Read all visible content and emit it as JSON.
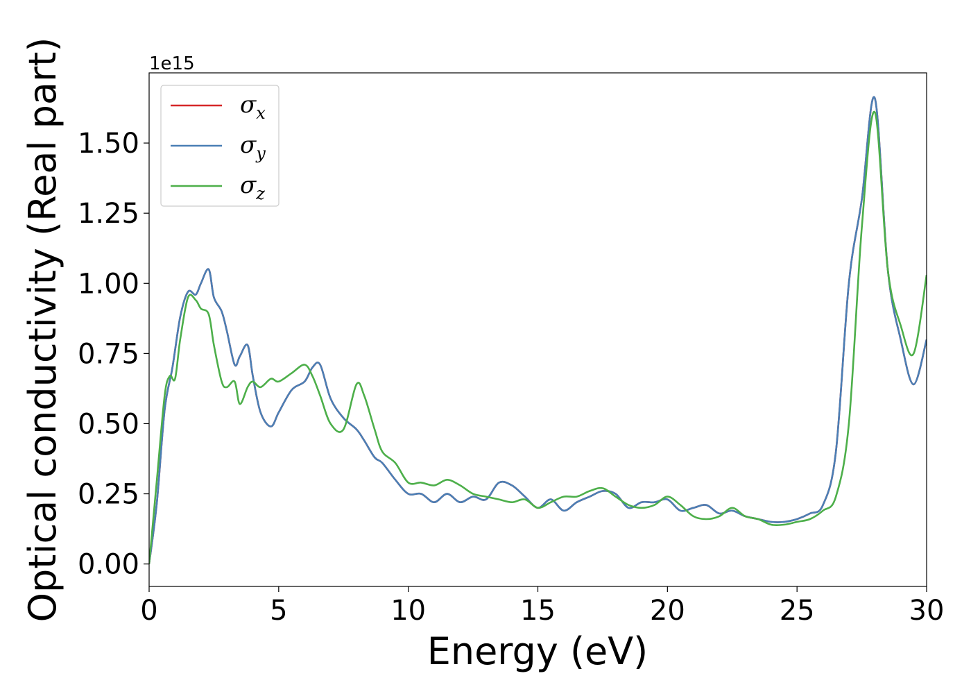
{
  "chart_data": {
    "type": "line",
    "title": "",
    "xlabel": "Energy (eV)",
    "ylabel": "Optical conductivity (Real part)",
    "y_offset_label": "1e15",
    "xlim": [
      0,
      30
    ],
    "ylim": [
      -0.08,
      1.75
    ],
    "x_ticks": [
      0,
      5,
      10,
      15,
      20,
      25,
      30
    ],
    "x_tick_labels": [
      "0",
      "5",
      "10",
      "15",
      "20",
      "25",
      "30"
    ],
    "y_ticks": [
      0,
      0.25,
      0.5,
      0.75,
      1.0,
      1.25,
      1.5
    ],
    "y_tick_labels": [
      "0.00",
      "0.25",
      "0.50",
      "0.75",
      "1.00",
      "1.25",
      "1.50"
    ],
    "grid": false,
    "legend_position": "top-left",
    "series": [
      {
        "name": "x",
        "color": "#d62728",
        "x": [
          0,
          0.3,
          0.6,
          0.9,
          1.2,
          1.5,
          1.8,
          2.0,
          2.3,
          2.5,
          2.8,
          3.0,
          3.3,
          3.5,
          3.8,
          4.0,
          4.3,
          4.7,
          5.0,
          5.5,
          6.0,
          6.3,
          6.6,
          7.0,
          7.5,
          8.0,
          8.3,
          8.7,
          9.0,
          9.5,
          10.0,
          10.5,
          11.0,
          11.5,
          12.0,
          12.5,
          13.0,
          13.5,
          14.0,
          14.5,
          15.0,
          15.5,
          16.0,
          16.5,
          17.0,
          17.5,
          18.0,
          18.5,
          19.0,
          19.5,
          20.0,
          20.5,
          21.0,
          21.5,
          22.0,
          22.5,
          23.0,
          23.5,
          24.0,
          24.5,
          25.0,
          25.5,
          26.0,
          26.5,
          27.0,
          27.5,
          28.0,
          28.5,
          29.0,
          29.5,
          30.0
        ],
        "y": [
          0,
          0.22,
          0.55,
          0.7,
          0.88,
          0.97,
          0.96,
          1.0,
          1.05,
          0.95,
          0.9,
          0.83,
          0.71,
          0.74,
          0.78,
          0.67,
          0.54,
          0.49,
          0.54,
          0.62,
          0.65,
          0.7,
          0.71,
          0.59,
          0.52,
          0.48,
          0.44,
          0.38,
          0.36,
          0.3,
          0.25,
          0.25,
          0.22,
          0.25,
          0.22,
          0.24,
          0.23,
          0.29,
          0.28,
          0.24,
          0.2,
          0.23,
          0.19,
          0.22,
          0.24,
          0.26,
          0.25,
          0.2,
          0.22,
          0.22,
          0.23,
          0.19,
          0.2,
          0.21,
          0.18,
          0.19,
          0.17,
          0.16,
          0.15,
          0.15,
          0.16,
          0.18,
          0.21,
          0.4,
          1.0,
          1.3,
          1.66,
          1.05,
          0.8,
          0.64,
          0.8
        ]
      },
      {
        "name": "y",
        "color": "#4a7fb5",
        "x": [
          0,
          0.3,
          0.6,
          0.9,
          1.2,
          1.5,
          1.8,
          2.0,
          2.3,
          2.5,
          2.8,
          3.0,
          3.3,
          3.5,
          3.8,
          4.0,
          4.3,
          4.7,
          5.0,
          5.5,
          6.0,
          6.3,
          6.6,
          7.0,
          7.5,
          8.0,
          8.3,
          8.7,
          9.0,
          9.5,
          10.0,
          10.5,
          11.0,
          11.5,
          12.0,
          12.5,
          13.0,
          13.5,
          14.0,
          14.5,
          15.0,
          15.5,
          16.0,
          16.5,
          17.0,
          17.5,
          18.0,
          18.5,
          19.0,
          19.5,
          20.0,
          20.5,
          21.0,
          21.5,
          22.0,
          22.5,
          23.0,
          23.5,
          24.0,
          24.5,
          25.0,
          25.5,
          26.0,
          26.5,
          27.0,
          27.5,
          28.0,
          28.5,
          29.0,
          29.5,
          30.0
        ],
        "y": [
          0,
          0.22,
          0.55,
          0.7,
          0.88,
          0.97,
          0.96,
          1.0,
          1.05,
          0.95,
          0.9,
          0.83,
          0.71,
          0.74,
          0.78,
          0.67,
          0.54,
          0.49,
          0.54,
          0.62,
          0.65,
          0.7,
          0.71,
          0.59,
          0.52,
          0.48,
          0.44,
          0.38,
          0.36,
          0.3,
          0.25,
          0.25,
          0.22,
          0.25,
          0.22,
          0.24,
          0.23,
          0.29,
          0.28,
          0.24,
          0.2,
          0.23,
          0.19,
          0.22,
          0.24,
          0.26,
          0.25,
          0.2,
          0.22,
          0.22,
          0.23,
          0.19,
          0.2,
          0.21,
          0.18,
          0.19,
          0.17,
          0.16,
          0.15,
          0.15,
          0.16,
          0.18,
          0.21,
          0.4,
          1.0,
          1.3,
          1.66,
          1.05,
          0.8,
          0.64,
          0.8
        ]
      },
      {
        "name": "z",
        "color": "#4daf4a",
        "x": [
          0,
          0.3,
          0.6,
          0.8,
          1.0,
          1.2,
          1.5,
          1.8,
          2.0,
          2.3,
          2.5,
          2.8,
          3.0,
          3.3,
          3.5,
          3.8,
          4.0,
          4.3,
          4.7,
          5.0,
          5.5,
          6.0,
          6.3,
          6.6,
          7.0,
          7.5,
          8.0,
          8.3,
          8.7,
          9.0,
          9.5,
          10.0,
          10.5,
          11.0,
          11.5,
          12.0,
          12.5,
          13.0,
          13.5,
          14.0,
          14.5,
          15.0,
          15.5,
          16.0,
          16.5,
          17.0,
          17.5,
          18.0,
          18.5,
          19.0,
          19.5,
          20.0,
          20.5,
          21.0,
          21.5,
          22.0,
          22.5,
          23.0,
          23.5,
          24.0,
          24.5,
          25.0,
          25.5,
          26.0,
          26.5,
          27.0,
          27.5,
          28.0,
          28.5,
          29.0,
          29.5,
          30.0
        ],
        "y": [
          0,
          0.3,
          0.6,
          0.67,
          0.66,
          0.8,
          0.95,
          0.94,
          0.91,
          0.89,
          0.78,
          0.65,
          0.63,
          0.65,
          0.57,
          0.63,
          0.65,
          0.63,
          0.66,
          0.65,
          0.68,
          0.71,
          0.67,
          0.6,
          0.5,
          0.48,
          0.64,
          0.6,
          0.48,
          0.4,
          0.36,
          0.29,
          0.29,
          0.28,
          0.3,
          0.28,
          0.25,
          0.24,
          0.23,
          0.22,
          0.23,
          0.2,
          0.22,
          0.24,
          0.24,
          0.26,
          0.27,
          0.24,
          0.21,
          0.2,
          0.21,
          0.24,
          0.21,
          0.17,
          0.16,
          0.17,
          0.2,
          0.17,
          0.16,
          0.14,
          0.14,
          0.15,
          0.16,
          0.19,
          0.24,
          0.5,
          1.2,
          1.61,
          1.05,
          0.85,
          0.75,
          1.03
        ]
      }
    ]
  }
}
